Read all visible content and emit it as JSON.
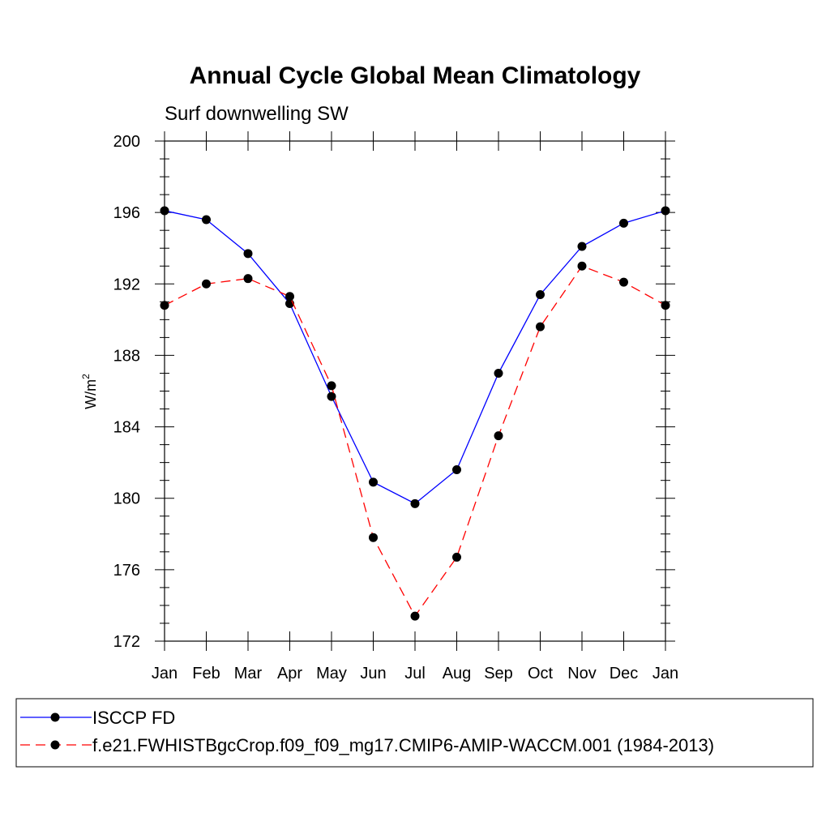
{
  "chart_data": {
    "type": "line",
    "title": "Annual Cycle Global Mean Climatology",
    "subtitle": "Surf downwelling SW",
    "ylabel_main": "W/m",
    "ylabel_sup": "2",
    "xlabel": "",
    "ylim": [
      172,
      200
    ],
    "yticks": [
      172,
      176,
      180,
      184,
      188,
      192,
      196,
      200
    ],
    "categories": [
      "Jan",
      "Feb",
      "Mar",
      "Apr",
      "May",
      "Jun",
      "Jul",
      "Aug",
      "Sep",
      "Oct",
      "Nov",
      "Dec",
      "Jan"
    ],
    "series": [
      {
        "name": "ISCCP FD",
        "color": "#0000ff",
        "dash": "solid",
        "values": [
          196.1,
          195.6,
          193.7,
          190.9,
          185.7,
          180.9,
          179.7,
          181.6,
          187.0,
          191.4,
          194.1,
          195.4,
          196.1
        ]
      },
      {
        "name": "f.e21.FWHISTBgcCrop.f09_f09_mg17.CMIP6-AMIP-WACCM.001 (1984-2013)",
        "color": "#ff0000",
        "dash": "dashed",
        "values": [
          190.8,
          192.0,
          192.3,
          191.3,
          186.3,
          177.8,
          173.4,
          176.7,
          183.5,
          189.6,
          193.0,
          192.1,
          190.8
        ]
      }
    ],
    "legend_position": "bottom"
  }
}
